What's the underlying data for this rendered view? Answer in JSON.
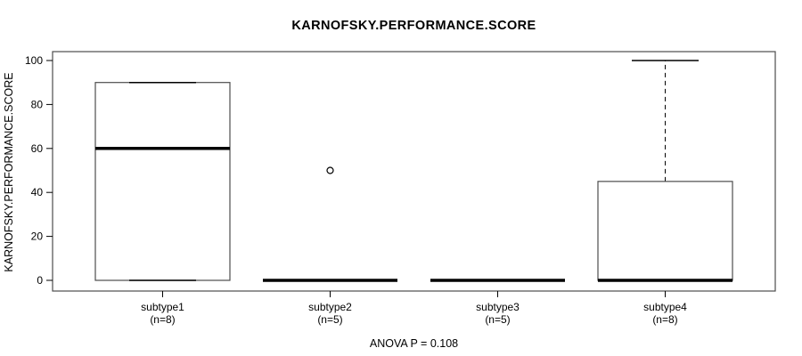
{
  "figure": {
    "background_color": "#ffffff",
    "line_color": "#000000",
    "box_border_color": "#4d4d4d"
  },
  "chart_data": {
    "type": "boxplot",
    "title": "KARNOFSKY.PERFORMANCE.SCORE",
    "ylabel": "KARNOFSKY.PERFORMANCE.SCORE",
    "annotation": "ANOVA P = 0.108",
    "ylim": [
      0,
      100
    ],
    "yticks": [
      0,
      20,
      40,
      60,
      80,
      100
    ],
    "grid": false,
    "legend": null,
    "categories": [
      {
        "label": "subtype1",
        "sublabel": "(n=8)",
        "n": 8,
        "whisker_low": 0,
        "q1": 0,
        "median": 60,
        "q3": 90,
        "whisker_high": 90,
        "outliers": []
      },
      {
        "label": "subtype2",
        "sublabel": "(n=5)",
        "n": 5,
        "whisker_low": 0,
        "q1": 0,
        "median": 0,
        "q3": 0,
        "whisker_high": 0,
        "outliers": [
          50
        ]
      },
      {
        "label": "subtype3",
        "sublabel": "(n=5)",
        "n": 5,
        "whisker_low": 0,
        "q1": 0,
        "median": 0,
        "q3": 0,
        "whisker_high": 0,
        "outliers": []
      },
      {
        "label": "subtype4",
        "sublabel": "(n=8)",
        "n": 8,
        "whisker_low": 0,
        "q1": 0,
        "median": 0,
        "q3": 45,
        "whisker_high": 100,
        "outliers": []
      }
    ]
  }
}
